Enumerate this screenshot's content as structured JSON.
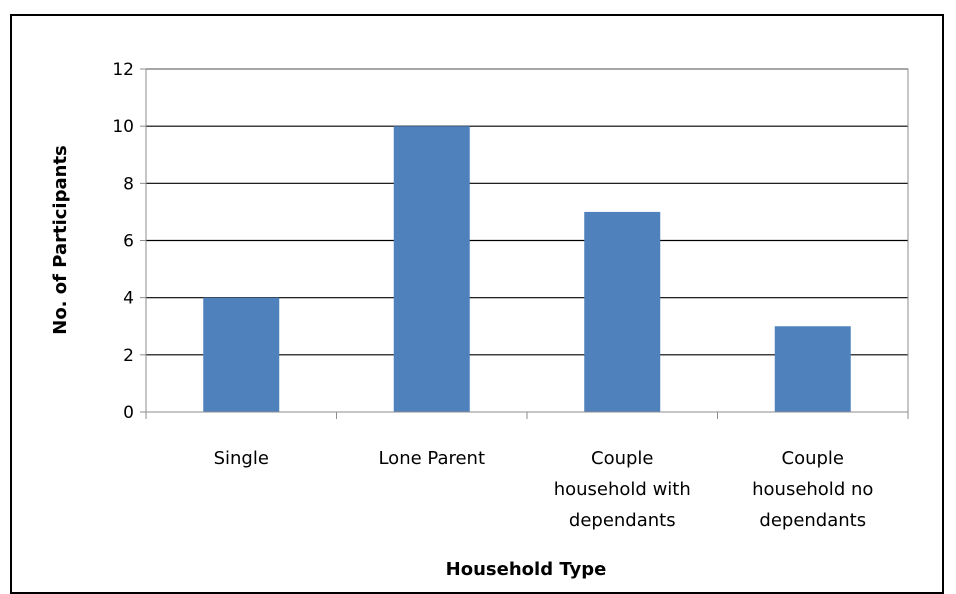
{
  "chart_data": {
    "type": "bar",
    "title": "",
    "categories": [
      [
        "Single"
      ],
      [
        "Lone Parent"
      ],
      [
        "Couple",
        "household with",
        "dependants"
      ],
      [
        "Couple",
        "household no",
        "dependants"
      ]
    ],
    "values": [
      4,
      10,
      7,
      3
    ],
    "xlabel": "Household Type",
    "ylabel": "No. of Participants",
    "ylim": [
      0,
      12
    ],
    "yticks": [
      0,
      2,
      4,
      6,
      8,
      10,
      12
    ],
    "grid": true,
    "legend": "none",
    "bar_color": "#4F81BD"
  }
}
